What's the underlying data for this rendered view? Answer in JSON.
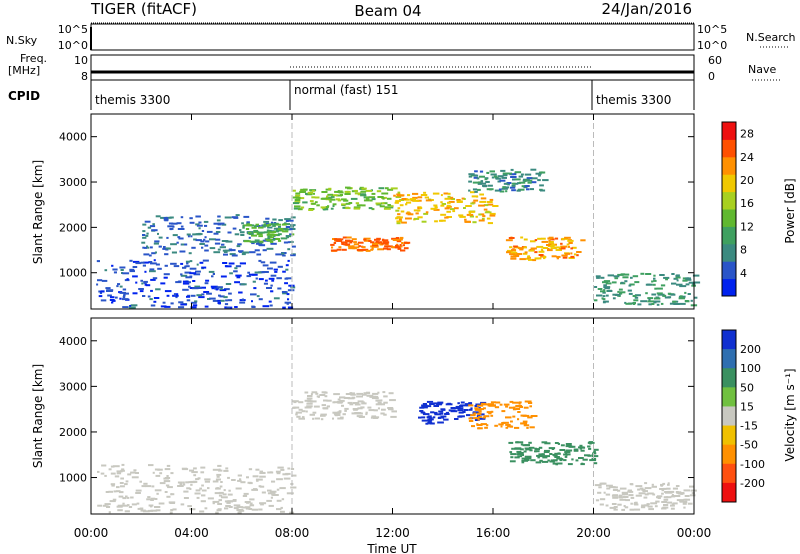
{
  "header": {
    "radar": "TIGER (fitACF)",
    "beam": "Beam 04",
    "date": "24/Jan/2016"
  },
  "top_panels": {
    "nsky_label": "N.Sky",
    "nsky_ticks": [
      "10^5",
      "10^0"
    ],
    "nsearch_label": "N.Search",
    "freq_label_line1": "Freq.",
    "freq_label_line2": "[MHz]",
    "freq_ticks": [
      "10",
      "8"
    ],
    "nave_label": "Nave",
    "nave_ticks": [
      "60",
      "0"
    ],
    "cpid_label": "CPID",
    "cpid_segments": [
      {
        "label": "themis 3300",
        "start": "00:00",
        "end": "08:00"
      },
      {
        "label": "normal (fast) 151",
        "start": "08:00",
        "end": "20:00"
      },
      {
        "label": "themis 3300",
        "start": "20:00",
        "end": "00:00"
      }
    ]
  },
  "time_axis": {
    "label": "Time UT",
    "ticks": [
      "00:00",
      "04:00",
      "08:00",
      "12:00",
      "16:00",
      "20:00",
      "00:00"
    ],
    "hours": [
      0,
      4,
      8,
      12,
      16,
      20,
      24
    ]
  },
  "chart_data": [
    {
      "type": "heatmap",
      "ylabel": "Slant Range [km]",
      "ylim": [
        200,
        4500
      ],
      "yticks": [
        1000,
        2000,
        3000,
        4000
      ],
      "xlim_hours": [
        0,
        24
      ],
      "colorbar": {
        "label": "Power [dB]",
        "ticks": [
          4,
          8,
          12,
          16,
          20,
          24,
          28
        ],
        "range": [
          0,
          30
        ],
        "colors": [
          "#0022ee",
          "#2a55c8",
          "#3b8a80",
          "#3fa060",
          "#60b830",
          "#a8d020",
          "#f0c800",
          "#ff9000",
          "#ff5000",
          "#ee1010"
        ]
      },
      "regions": [
        {
          "t0": 0.2,
          "t1": 8.0,
          "r0": 250,
          "r1": 1300,
          "level": 4
        },
        {
          "t0": 2.0,
          "t1": 8.0,
          "r0": 1400,
          "r1": 2300,
          "level": 6
        },
        {
          "t0": 6.0,
          "t1": 8.0,
          "r0": 1700,
          "r1": 2100,
          "level": 12
        },
        {
          "t0": 8.0,
          "t1": 12.0,
          "r0": 2400,
          "r1": 2900,
          "level": 14
        },
        {
          "t0": 12.0,
          "t1": 16.0,
          "r0": 2100,
          "r1": 2800,
          "level": 20
        },
        {
          "t0": 9.5,
          "t1": 12.5,
          "r0": 1500,
          "r1": 1800,
          "level": 24
        },
        {
          "t0": 16.5,
          "t1": 19.5,
          "r0": 1300,
          "r1": 1800,
          "level": 22
        },
        {
          "t0": 15.0,
          "t1": 18.0,
          "r0": 2800,
          "r1": 3300,
          "level": 8
        },
        {
          "t0": 20.0,
          "t1": 24.0,
          "r0": 300,
          "r1": 1000,
          "level": 9
        }
      ]
    },
    {
      "type": "heatmap",
      "ylabel": "Slant Range [km]",
      "ylim": [
        200,
        4500
      ],
      "yticks": [
        1000,
        2000,
        3000,
        4000
      ],
      "xlim_hours": [
        0,
        24
      ],
      "colorbar": {
        "label": "Velocity [m s⁻¹]",
        "ticks": [
          "200",
          "100",
          "50",
          "15",
          "-15",
          "-50",
          "-100",
          "-200"
        ],
        "colors": [
          "#1030d0",
          "#2f6fb0",
          "#3a9060",
          "#70c040",
          "#c8c8c0",
          "#f0c000",
          "#ff9000",
          "#ff5010",
          "#ee1010"
        ]
      },
      "regions": [
        {
          "t0": 0.2,
          "t1": 8.0,
          "r0": 250,
          "r1": 1300,
          "vel": 0
        },
        {
          "t0": 8.0,
          "t1": 12.0,
          "r0": 2300,
          "r1": 2900,
          "vel": 0
        },
        {
          "t0": 13.0,
          "t1": 15.5,
          "r0": 2200,
          "r1": 2700,
          "vel": 200
        },
        {
          "t0": 15.0,
          "t1": 17.5,
          "r0": 2100,
          "r1": 2700,
          "vel": -50
        },
        {
          "t0": 16.5,
          "t1": 20.0,
          "r0": 1300,
          "r1": 1800,
          "vel": 50
        },
        {
          "t0": 20.0,
          "t1": 24.0,
          "r0": 300,
          "r1": 900,
          "vel": 0
        }
      ]
    }
  ]
}
